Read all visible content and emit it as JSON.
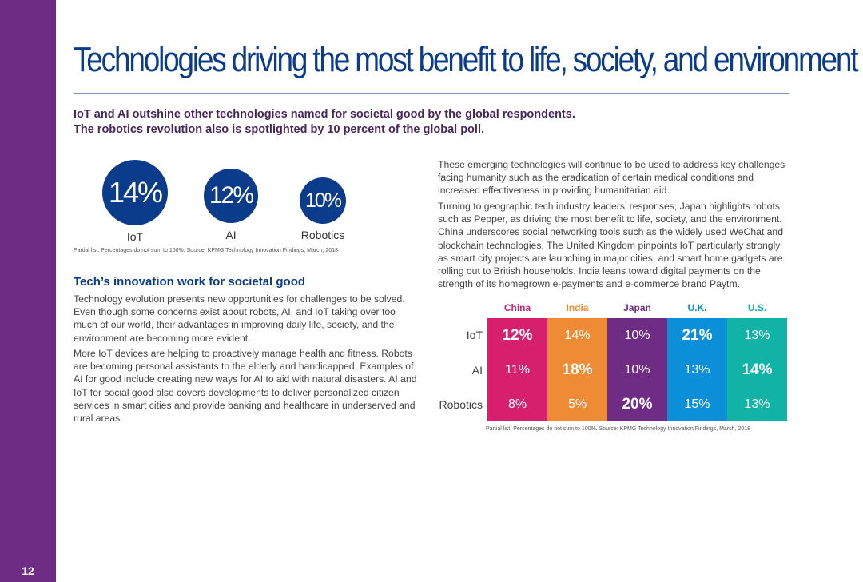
{
  "page_number": "12",
  "title": "Technologies driving the most benefit to life, society, and environment",
  "subhead": {
    "line1": "IoT and AI outshine other technologies named for societal good by the global respondents.",
    "line2": "The robotics revolution also is spotlighted by 10 percent of the global poll."
  },
  "bubbles": [
    {
      "value": "14%",
      "label": "IoT"
    },
    {
      "value": "12%",
      "label": "AI"
    },
    {
      "value": "10%",
      "label": "Robotics"
    }
  ],
  "bubble_note": "Partial list. Percentages do not sum to 100%. Source: KPMG Technology Innovation Findings, March, 2018",
  "section": {
    "title": "Tech’s innovation work for societal good",
    "p1": "Technology evolution presents new opportunities for challenges to be solved. Even though some concerns exist about robots, AI, and IoT taking over too much of our world, their advantages in improving daily life, society, and the environment are becoming more evident.",
    "p2": "More IoT devices are helping to proactively manage health and fitness. Robots are becoming personal assistants to the elderly and handicapped. Examples of AI for good include creating new ways for AI to aid with natural disasters. AI and IoT for social good also covers developments to deliver personalized citizen services in smart cities and provide banking and healthcare in underserved and rural areas."
  },
  "right": {
    "p1": "These emerging technologies will continue to be used to address key challenges facing humanity such as the eradication of certain medical conditions and increased effectiveness in providing humanitarian aid.",
    "p2": "Turning to geographic tech industry leaders’ responses, Japan highlights robots such as Pepper, as driving the most benefit to life, society, and the environment. China underscores social networking tools such as the widely used WeChat and blockchain technologies. The United Kingdom pinpoints IoT particularly strongly as smart city projects are launching in major cities, and smart home gadgets are rolling out to British households. India leans toward digital payments on the strength of its homegrown e-payments and e-commerce brand Paytm."
  },
  "table": {
    "columns": [
      {
        "name": "China",
        "color": "#d6206e"
      },
      {
        "name": "India",
        "color": "#f08b35"
      },
      {
        "name": "Japan",
        "color": "#6e2c84"
      },
      {
        "name": "U.K.",
        "color": "#0a8fd8"
      },
      {
        "name": "U.S.",
        "color": "#10b3a6"
      }
    ],
    "rows": [
      {
        "label": "IoT",
        "values": [
          "12%",
          "14%",
          "10%",
          "21%",
          "13%"
        ],
        "bold": [
          true,
          false,
          false,
          true,
          false
        ]
      },
      {
        "label": "AI",
        "values": [
          "11%",
          "18%",
          "10%",
          "13%",
          "14%"
        ],
        "bold": [
          false,
          true,
          false,
          false,
          true
        ]
      },
      {
        "label": "Robotics",
        "values": [
          "8%",
          "5%",
          "20%",
          "15%",
          "13%"
        ],
        "bold": [
          false,
          false,
          true,
          false,
          false
        ]
      }
    ],
    "note": "Partial list. Percentages do not sum to 100%. Source: KPMG Technology Innovation Findings, March, 2018"
  }
}
